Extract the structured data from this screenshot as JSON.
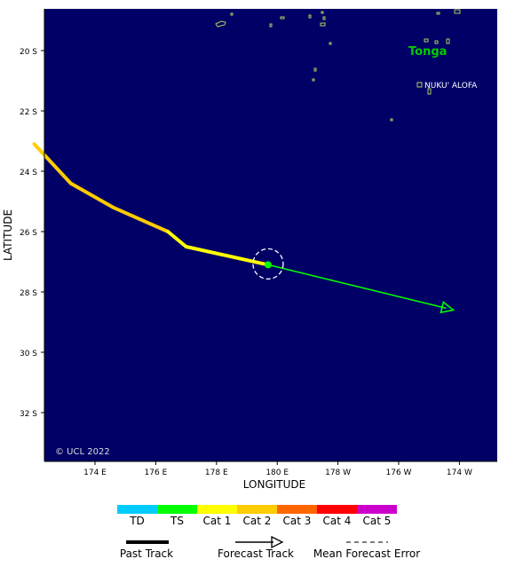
{
  "map": {
    "background_color": "#000066",
    "country_label": "Tonga",
    "city_label": "NUKU' ALOFA",
    "copyright": "© UCL 2022",
    "x_axis_title": "LONGITUDE",
    "y_axis_title": "LATITUDE",
    "x_ticks": [
      "174 E",
      "176 E",
      "178 E",
      "180 E",
      "178 W",
      "176 W",
      "174 W"
    ],
    "y_ticks": [
      "20 S",
      "22 S",
      "24 S",
      "26 S",
      "28 S",
      "30 S",
      "32 S"
    ]
  },
  "track": {
    "past_points": [
      {
        "lon_e": 172.0,
        "lat_s": 23.1,
        "category": "Cat 2"
      },
      {
        "lon_e": 173.2,
        "lat_s": 24.4,
        "category": "Cat 2"
      },
      {
        "lon_e": 174.6,
        "lat_s": 25.2,
        "category": "Cat 2"
      },
      {
        "lon_e": 176.4,
        "lat_s": 26.0,
        "category": "Cat 1"
      },
      {
        "lon_e": 177.0,
        "lat_s": 26.5,
        "category": "Cat 1"
      },
      {
        "lon_e": 179.7,
        "lat_s": 27.1,
        "category": "Cat 1"
      }
    ],
    "current_position": {
      "lon_e": 179.7,
      "lat_s": 27.1
    },
    "forecast_end": {
      "lon_e": 185.8,
      "lat_s": 28.6
    },
    "forecast_color": "#00ff00"
  },
  "legend": {
    "categories": [
      {
        "label": "TD",
        "color": "#00ccff"
      },
      {
        "label": "TS",
        "color": "#00ff00"
      },
      {
        "label": "Cat 1",
        "color": "#ffff00"
      },
      {
        "label": "Cat 2",
        "color": "#ffcc00"
      },
      {
        "label": "Cat 3",
        "color": "#ff6600"
      },
      {
        "label": "Cat 4",
        "color": "#ff0000"
      },
      {
        "label": "Cat 5",
        "color": "#cc00cc"
      }
    ],
    "past_track_label": "Past Track",
    "forecast_track_label": "Forecast Track",
    "mean_error_label": "Mean Forecast Error"
  }
}
